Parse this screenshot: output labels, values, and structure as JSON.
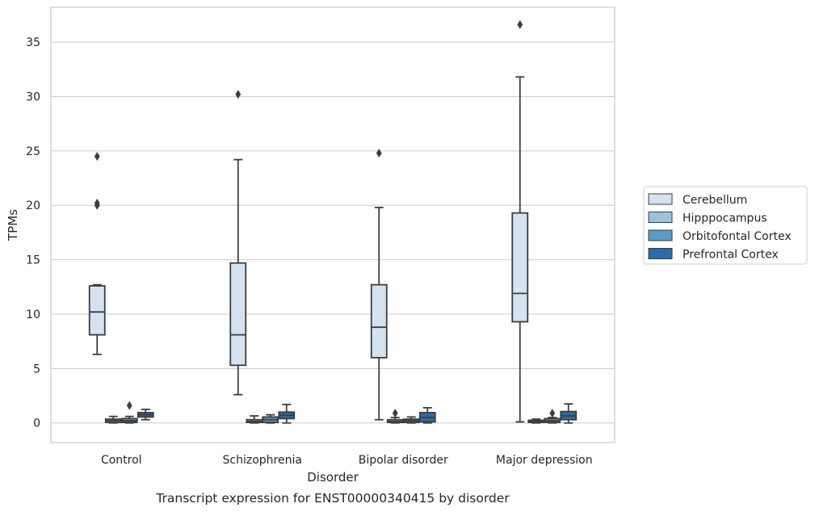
{
  "chart_data": {
    "type": "box",
    "xlabel": "Disorder",
    "ylabel": "TPMs",
    "caption": "Transcript expression for ENST00000340415 by disorder",
    "ylim": [
      -1.8,
      38.2
    ],
    "yticks": [
      0,
      5,
      10,
      15,
      20,
      25,
      30,
      35
    ],
    "grid": "horizontal",
    "legend_position": "right",
    "categories": [
      "Control",
      "Schizophrenia",
      "Bipolar disorder",
      "Major depression"
    ],
    "series": [
      {
        "name": "Cerebellum",
        "color": "#d5e2f0",
        "boxes": [
          {
            "whislo": 6.3,
            "q1": 8.1,
            "med": 10.2,
            "q3": 12.6,
            "whishi": 12.7,
            "fliers": [
              24.5,
              20.2,
              20.0
            ]
          },
          {
            "whislo": 2.6,
            "q1": 5.3,
            "med": 8.1,
            "q3": 14.7,
            "whishi": 24.2,
            "fliers": [
              30.2
            ]
          },
          {
            "whislo": 0.3,
            "q1": 6.0,
            "med": 8.8,
            "q3": 12.7,
            "whishi": 19.8,
            "fliers": [
              24.8
            ]
          },
          {
            "whislo": 0.1,
            "q1": 9.3,
            "med": 11.9,
            "q3": 19.3,
            "whishi": 31.8,
            "fliers": [
              36.6
            ]
          }
        ]
      },
      {
        "name": "Hipppocampus",
        "color": "#9cc3de",
        "boxes": [
          {
            "whislo": 0.0,
            "q1": 0.05,
            "med": 0.2,
            "q3": 0.35,
            "whishi": 0.6,
            "fliers": []
          },
          {
            "whislo": 0.0,
            "q1": 0.05,
            "med": 0.15,
            "q3": 0.3,
            "whishi": 0.65,
            "fliers": []
          },
          {
            "whislo": 0.0,
            "q1": 0.05,
            "med": 0.15,
            "q3": 0.3,
            "whishi": 0.5,
            "fliers": [
              0.9
            ]
          },
          {
            "whislo": 0.0,
            "q1": 0.05,
            "med": 0.15,
            "q3": 0.25,
            "whishi": 0.35,
            "fliers": []
          }
        ]
      },
      {
        "name": "Orbitofontal Cortex",
        "color": "#5b9bc8",
        "boxes": [
          {
            "whislo": 0.0,
            "q1": 0.05,
            "med": 0.2,
            "q3": 0.4,
            "whishi": 0.6,
            "fliers": [
              1.6
            ]
          },
          {
            "whislo": 0.0,
            "q1": 0.05,
            "med": 0.3,
            "q3": 0.55,
            "whishi": 0.75,
            "fliers": []
          },
          {
            "whislo": 0.0,
            "q1": 0.05,
            "med": 0.2,
            "q3": 0.35,
            "whishi": 0.55,
            "fliers": []
          },
          {
            "whislo": 0.0,
            "q1": 0.05,
            "med": 0.2,
            "q3": 0.4,
            "whishi": 0.5,
            "fliers": [
              0.9
            ]
          }
        ]
      },
      {
        "name": "Prefrontal Cortex",
        "color": "#2b6ba8",
        "boxes": [
          {
            "whislo": 0.3,
            "q1": 0.55,
            "med": 0.75,
            "q3": 0.95,
            "whishi": 1.25,
            "fliers": []
          },
          {
            "whislo": 0.0,
            "q1": 0.4,
            "med": 0.7,
            "q3": 1.0,
            "whishi": 1.7,
            "fliers": []
          },
          {
            "whislo": 0.0,
            "q1": 0.1,
            "med": 0.5,
            "q3": 0.95,
            "whishi": 1.4,
            "fliers": []
          },
          {
            "whislo": 0.0,
            "q1": 0.3,
            "med": 0.65,
            "q3": 1.05,
            "whishi": 1.75,
            "fliers": []
          }
        ]
      }
    ]
  }
}
